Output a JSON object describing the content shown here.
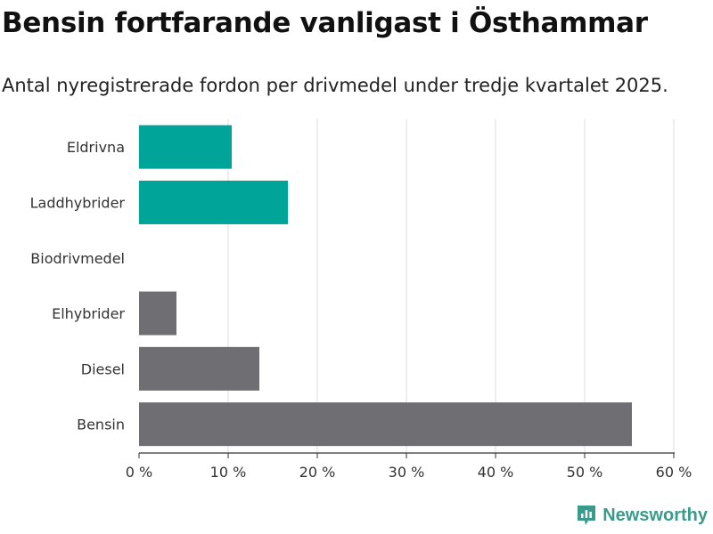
{
  "chart_data": {
    "type": "bar",
    "orientation": "horizontal",
    "title": "Bensin fortfarande vanligast i Östhammar",
    "subtitle": "Antal nyregistrerade fordon per drivmedel under tredje kvartalet 2025.",
    "categories": [
      "Eldrivna",
      "Laddhybrider",
      "Biodrivmedel",
      "Elhybrider",
      "Diesel",
      "Bensin"
    ],
    "values": [
      10.4,
      16.7,
      0,
      4.2,
      13.5,
      55.3
    ],
    "bar_colors": [
      "#00a499",
      "#00a499",
      "#6e6e73",
      "#6e6e73",
      "#6e6e73",
      "#6e6e73"
    ],
    "xlim": [
      0,
      60
    ],
    "xticks": [
      0,
      10,
      20,
      30,
      40,
      50,
      60
    ],
    "xtick_labels": [
      "0 %",
      "10 %",
      "20 %",
      "30 %",
      "40 %",
      "50 %",
      "60 %"
    ],
    "xlabel": "",
    "ylabel": "",
    "grid": true
  },
  "brand": {
    "name": "Newsworthy",
    "color": "#3a9a8c",
    "icon": "newsworthy-logo-icon"
  }
}
